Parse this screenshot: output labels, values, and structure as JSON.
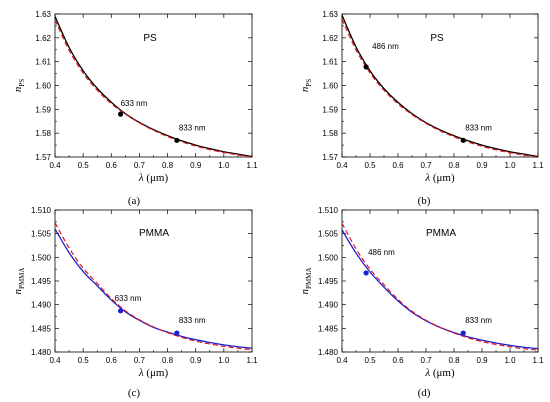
{
  "chart_data": [
    {
      "type": "line",
      "caption": "(a)",
      "title": "PS",
      "xlabel": {
        "symbol": "λ",
        "unit": " (μm)"
      },
      "ylabel": {
        "symbol": "n",
        "subscript": "PS"
      },
      "xlim": [
        0.4,
        1.1
      ],
      "ylim": [
        1.57,
        1.63
      ],
      "xticks": [
        "0.4",
        "0.5",
        "0.6",
        "0.7",
        "0.8",
        "0.9",
        "1.0",
        "1.1"
      ],
      "yticks": [
        "1.57",
        "1.58",
        "1.59",
        "1.60",
        "1.61",
        "1.62",
        "1.63"
      ],
      "grid": false,
      "series": [
        {
          "style": "solid",
          "color": "#000000",
          "x": [
            0.4,
            0.45,
            0.5,
            0.55,
            0.6,
            0.65,
            0.7,
            0.75,
            0.8,
            0.85,
            0.9,
            0.95,
            1.0,
            1.05,
            1.1
          ],
          "y": [
            1.629,
            1.616,
            1.6062,
            1.5988,
            1.593,
            1.5882,
            1.5845,
            1.5815,
            1.579,
            1.5768,
            1.575,
            1.5735,
            1.5722,
            1.5712,
            1.5702
          ]
        },
        {
          "style": "dashed",
          "color": "#e0151b",
          "x": [
            0.4,
            0.45,
            0.5,
            0.55,
            0.6,
            0.65,
            0.7,
            0.75,
            0.8,
            0.85,
            0.9,
            0.95,
            1.0,
            1.05,
            1.1
          ],
          "y": [
            1.6275,
            1.6148,
            1.6052,
            1.598,
            1.5924,
            1.588,
            1.5843,
            1.5812,
            1.5786,
            1.5764,
            1.5746,
            1.5731,
            1.5719,
            1.5709,
            1.57
          ]
        }
      ],
      "points": [
        {
          "x": 0.633,
          "y": 1.588,
          "label": "633 nm",
          "color": "#000000"
        },
        {
          "x": 0.833,
          "y": 1.577,
          "label": "833 nm",
          "color": "#000000"
        }
      ]
    },
    {
      "type": "line",
      "caption": "(b)",
      "title": "PS",
      "xlabel": {
        "symbol": "λ",
        "unit": " (μm)"
      },
      "ylabel": {
        "symbol": "n",
        "subscript": "PS"
      },
      "xlim": [
        0.4,
        1.1
      ],
      "ylim": [
        1.57,
        1.63
      ],
      "xticks": [
        "0.4",
        "0.5",
        "0.6",
        "0.7",
        "0.8",
        "0.9",
        "1.0",
        "1.1"
      ],
      "yticks": [
        "1.57",
        "1.58",
        "1.59",
        "1.60",
        "1.61",
        "1.62",
        "1.63"
      ],
      "grid": false,
      "series": [
        {
          "style": "solid",
          "color": "#000000",
          "x": [
            0.4,
            0.45,
            0.5,
            0.55,
            0.6,
            0.65,
            0.7,
            0.75,
            0.8,
            0.85,
            0.9,
            0.95,
            1.0,
            1.05,
            1.1
          ],
          "y": [
            1.6295,
            1.6162,
            1.6062,
            1.5987,
            1.5929,
            1.5882,
            1.5844,
            1.5814,
            1.5789,
            1.5768,
            1.575,
            1.5735,
            1.5722,
            1.5712,
            1.5702
          ]
        },
        {
          "style": "dashed",
          "color": "#e0151b",
          "x": [
            0.4,
            0.45,
            0.5,
            0.55,
            0.6,
            0.65,
            0.7,
            0.75,
            0.8,
            0.85,
            0.9,
            0.95,
            1.0,
            1.05,
            1.1
          ],
          "y": [
            1.6278,
            1.615,
            1.6053,
            1.598,
            1.5923,
            1.5878,
            1.5841,
            1.581,
            1.5785,
            1.5763,
            1.5745,
            1.573,
            1.5718,
            1.5708,
            1.5699
          ]
        }
      ],
      "points": [
        {
          "x": 0.486,
          "y": 1.6078,
          "label": "486 nm",
          "color": "#000000"
        },
        {
          "x": 0.833,
          "y": 1.577,
          "label": "833 nm",
          "color": "#000000"
        }
      ]
    },
    {
      "type": "line",
      "caption": "(c)",
      "title": "PMMA",
      "xlabel": {
        "symbol": "λ",
        "unit": " (μm)"
      },
      "ylabel": {
        "symbol": "n",
        "subscript": "PMMA"
      },
      "xlim": [
        0.4,
        1.1
      ],
      "ylim": [
        1.48,
        1.51
      ],
      "xticks": [
        "0.4",
        "0.5",
        "0.6",
        "0.7",
        "0.8",
        "0.9",
        "1.0",
        "1.1"
      ],
      "yticks": [
        "1.480",
        "1.485",
        "1.490",
        "1.495",
        "1.500",
        "1.505",
        "1.510"
      ],
      "grid": false,
      "series": [
        {
          "style": "solid",
          "color": "#1a20d0",
          "x": [
            0.4,
            0.45,
            0.5,
            0.55,
            0.6,
            0.65,
            0.7,
            0.75,
            0.8,
            0.85,
            0.9,
            0.95,
            1.0,
            1.05,
            1.1
          ],
          "y": [
            1.506,
            1.501,
            1.497,
            1.494,
            1.491,
            1.4885,
            1.4867,
            1.4852,
            1.4842,
            1.4833,
            1.4826,
            1.482,
            1.4815,
            1.4811,
            1.4808
          ]
        },
        {
          "style": "dashed",
          "color": "#e0151b",
          "x": [
            0.4,
            0.45,
            0.5,
            0.55,
            0.6,
            0.65,
            0.7,
            0.75,
            0.8,
            0.85,
            0.9,
            0.95,
            1.0,
            1.05,
            1.1
          ],
          "y": [
            1.5073,
            1.502,
            1.4977,
            1.4945,
            1.4913,
            1.4887,
            1.4868,
            1.4853,
            1.4841,
            1.4831,
            1.4823,
            1.4817,
            1.4812,
            1.4808,
            1.4805
          ]
        }
      ],
      "points": [
        {
          "x": 0.633,
          "y": 1.4887,
          "label": "633 nm",
          "color": "#1a20d0"
        },
        {
          "x": 0.833,
          "y": 1.484,
          "label": "833 nm",
          "color": "#1a20d0"
        }
      ]
    },
    {
      "type": "line",
      "caption": "(d)",
      "title": "PMMA",
      "xlabel": {
        "symbol": "λ",
        "unit": " (μm)"
      },
      "ylabel": {
        "symbol": "n",
        "subscript": "PMMA"
      },
      "xlim": [
        0.4,
        1.1
      ],
      "ylim": [
        1.48,
        1.51
      ],
      "xticks": [
        "0.4",
        "0.5",
        "0.6",
        "0.7",
        "0.8",
        "0.9",
        "1.0",
        "1.1"
      ],
      "yticks": [
        "1.480",
        "1.485",
        "1.490",
        "1.495",
        "1.500",
        "1.505",
        "1.510"
      ],
      "grid": false,
      "series": [
        {
          "style": "solid",
          "color": "#1a20d0",
          "x": [
            0.4,
            0.45,
            0.5,
            0.55,
            0.6,
            0.65,
            0.7,
            0.75,
            0.8,
            0.85,
            0.9,
            0.95,
            1.0,
            1.05,
            1.1
          ],
          "y": [
            1.5058,
            1.5009,
            1.4969,
            1.4937,
            1.4908,
            1.4884,
            1.4866,
            1.4852,
            1.4841,
            1.4832,
            1.4825,
            1.4819,
            1.4814,
            1.481,
            1.4807
          ]
        },
        {
          "style": "dashed",
          "color": "#e0151b",
          "x": [
            0.4,
            0.45,
            0.5,
            0.55,
            0.6,
            0.65,
            0.7,
            0.75,
            0.8,
            0.85,
            0.9,
            0.95,
            1.0,
            1.05,
            1.1
          ],
          "y": [
            1.5072,
            1.5018,
            1.4975,
            1.4942,
            1.4911,
            1.4886,
            1.4867,
            1.4852,
            1.484,
            1.483,
            1.4822,
            1.4816,
            1.4811,
            1.4807,
            1.4804
          ]
        }
      ],
      "points": [
        {
          "x": 0.486,
          "y": 1.4967,
          "label": "486 nm",
          "color": "#1a20d0"
        },
        {
          "x": 0.833,
          "y": 1.484,
          "label": "833 nm",
          "color": "#1a20d0"
        }
      ]
    }
  ]
}
